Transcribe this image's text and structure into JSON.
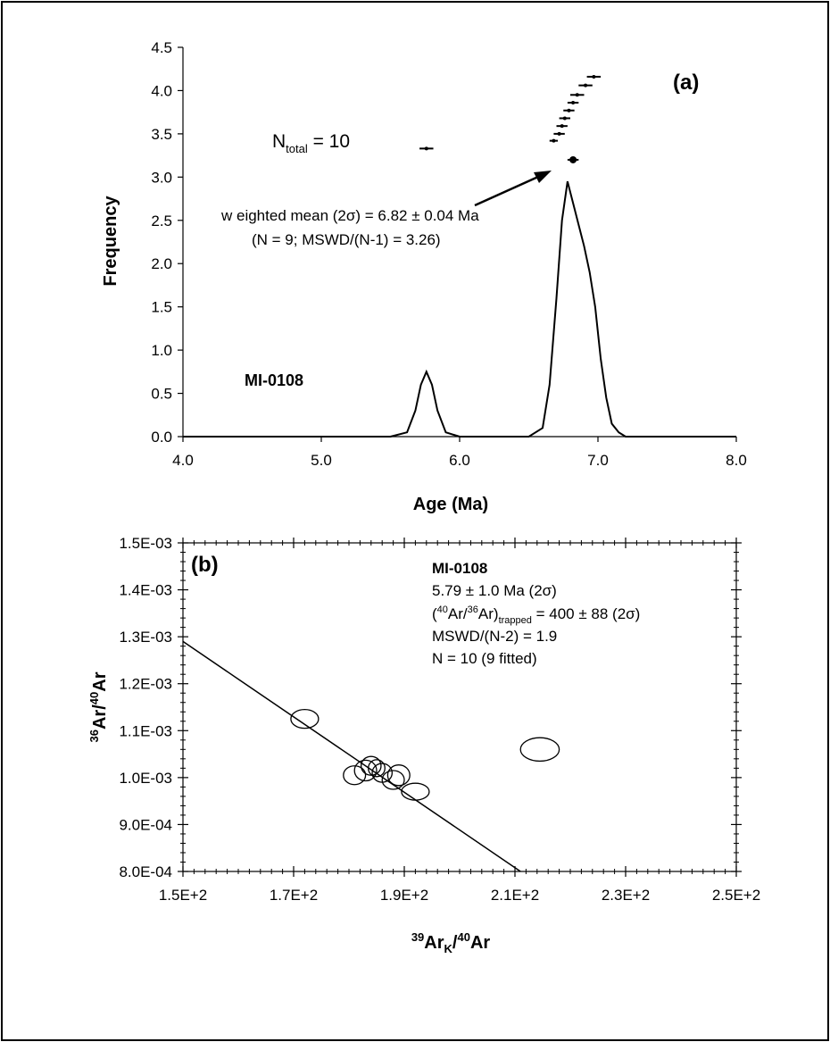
{
  "chart_data": [
    {
      "type": "line",
      "panel": "(a)",
      "xlabel": "Age (Ma)",
      "ylabel": "Frequency",
      "xlim": [
        4.0,
        8.0
      ],
      "ylim": [
        0.0,
        4.5
      ],
      "x_ticks": [
        "4.0",
        "5.0",
        "6.0",
        "7.0",
        "8.0"
      ],
      "y_ticks": [
        "0.0",
        "0.5",
        "1.0",
        "1.5",
        "2.0",
        "2.5",
        "3.0",
        "3.5",
        "4.0",
        "4.5"
      ],
      "sample": "MI-0108",
      "ntotal_text": {
        "prefix": "N",
        "subscript": "total",
        "suffix": " = 10"
      },
      "mean_label_1": "w eighted mean (2σ) = 6.82 ± 0.04 Ma",
      "mean_label_2": "(N = 9; MSWD/(N-1) = 3.26)",
      "probability_curve": {
        "x": [
          4.0,
          5.5,
          5.62,
          5.68,
          5.72,
          5.76,
          5.8,
          5.84,
          5.9,
          6.0,
          6.5,
          6.6,
          6.65,
          6.7,
          6.74,
          6.78,
          6.82,
          6.86,
          6.9,
          6.94,
          6.98,
          7.02,
          7.06,
          7.1,
          7.15,
          7.2,
          8.0
        ],
        "y": [
          0.0,
          0.0,
          0.05,
          0.3,
          0.6,
          0.75,
          0.6,
          0.3,
          0.05,
          0.0,
          0.0,
          0.1,
          0.6,
          1.6,
          2.5,
          2.95,
          2.7,
          2.45,
          2.2,
          1.9,
          1.5,
          0.9,
          0.45,
          0.15,
          0.05,
          0.0,
          0.0
        ]
      },
      "individual_ages": [
        {
          "age": 5.76,
          "err": 0.05,
          "y": 3.33
        },
        {
          "age": 6.68,
          "err": 0.03,
          "y": 3.42
        },
        {
          "age": 6.72,
          "err": 0.04,
          "y": 3.5
        },
        {
          "age": 6.74,
          "err": 0.04,
          "y": 3.59
        },
        {
          "age": 6.76,
          "err": 0.04,
          "y": 3.68
        },
        {
          "age": 6.79,
          "err": 0.04,
          "y": 3.77
        },
        {
          "age": 6.82,
          "err": 0.04,
          "y": 3.86
        },
        {
          "age": 6.85,
          "err": 0.05,
          "y": 3.95
        },
        {
          "age": 6.91,
          "err": 0.05,
          "y": 4.06
        },
        {
          "age": 6.97,
          "err": 0.05,
          "y": 4.16
        }
      ],
      "weighted_mean": {
        "age": 6.82,
        "err": 0.04,
        "y": 3.2
      }
    },
    {
      "type": "scatter",
      "panel": "(b)",
      "xlabel": {
        "sup1": "39",
        "main1": "Ar",
        "sub": "K",
        "slash": "/",
        "sup2": "40",
        "main2": "Ar"
      },
      "ylabel": {
        "sup1": "36",
        "main1": "Ar/",
        "sup2": "40",
        "main2": "Ar"
      },
      "xlim": [
        150,
        250
      ],
      "ylim": [
        0.0008,
        0.0015
      ],
      "x_ticks": [
        "1.5E+2",
        "1.7E+2",
        "1.9E+2",
        "2.1E+2",
        "2.3E+2",
        "2.5E+2"
      ],
      "y_ticks": [
        "8.0E-04",
        "9.0E-04",
        "1.0E-03",
        "1.1E-03",
        "1.2E-03",
        "1.3E-03",
        "1.4E-03",
        "1.5E-03"
      ],
      "sample": "MI-0108",
      "info_line_1": "5.79 ± 1.0 Ma (2σ)",
      "info_line_2": {
        "open": "(",
        "sup1": "40",
        "t1": "Ar/",
        "sup2": "36",
        "t2": "Ar)",
        "sub": "trapped",
        "rest": " = 400 ± 88 (2σ)"
      },
      "info_line_3": "MSWD/(N-2) = 1.9",
      "info_line_4": "N = 10 (9 fitted)",
      "regression_line": {
        "x": [
          150,
          211
        ],
        "y": [
          0.00129,
          0.0008
        ]
      },
      "error_ellipses": [
        {
          "x": 172.0,
          "y": 0.001125,
          "rx": 2.5,
          "ry": 2e-05
        },
        {
          "x": 181.0,
          "y": 0.001005,
          "rx": 2.0,
          "ry": 2e-05
        },
        {
          "x": 183.0,
          "y": 0.001015,
          "rx": 2.0,
          "ry": 2.2e-05
        },
        {
          "x": 184.0,
          "y": 0.001025,
          "rx": 1.8,
          "ry": 2e-05
        },
        {
          "x": 185.0,
          "y": 0.00102,
          "rx": 1.5,
          "ry": 1.8e-05
        },
        {
          "x": 186.0,
          "y": 0.00101,
          "rx": 1.8,
          "ry": 2e-05
        },
        {
          "x": 188.0,
          "y": 0.000995,
          "rx": 2.0,
          "ry": 2e-05
        },
        {
          "x": 189.0,
          "y": 0.001005,
          "rx": 2.0,
          "ry": 2.2e-05
        },
        {
          "x": 192.0,
          "y": 0.00097,
          "rx": 2.5,
          "ry": 1.8e-05
        },
        {
          "x": 214.5,
          "y": 0.00106,
          "rx": 3.5,
          "ry": 2.5e-05
        }
      ]
    }
  ]
}
